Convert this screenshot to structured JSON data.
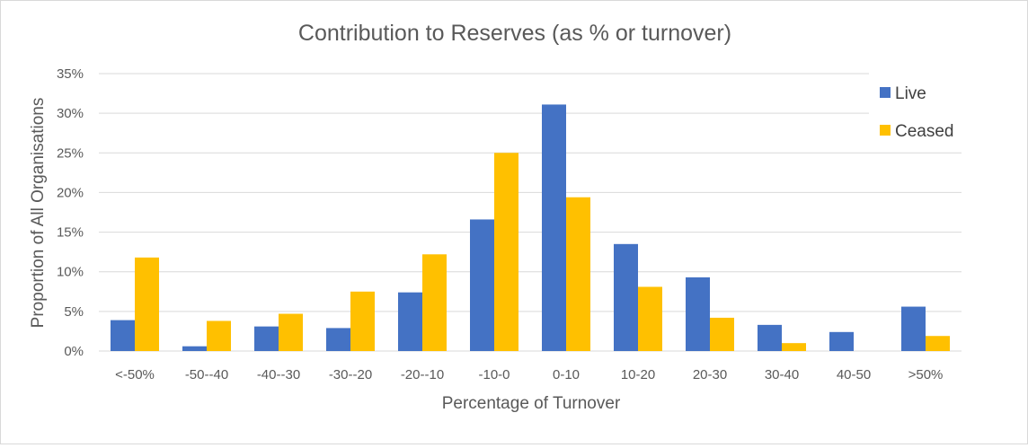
{
  "chart_data": {
    "type": "bar",
    "title": "Contribution to Reserves (as % or turnover)",
    "xlabel": "Percentage of Turnover",
    "ylabel": "Proportion of All Organisations",
    "categories": [
      "<-50%",
      "-50--40",
      "-40--30",
      "-30--20",
      "-20--10",
      "-10-0",
      "0-10",
      "10-20",
      "20-30",
      "30-40",
      "40-50",
      ">50%"
    ],
    "series": [
      {
        "name": "Live",
        "color": "#4472C4",
        "values": [
          3.9,
          0.6,
          3.1,
          2.9,
          7.4,
          16.6,
          31.1,
          13.5,
          9.3,
          3.3,
          2.4,
          5.6
        ]
      },
      {
        "name": "Ceased",
        "color": "#FFC000",
        "values": [
          11.8,
          3.8,
          4.7,
          7.5,
          12.2,
          25.0,
          19.4,
          8.1,
          4.2,
          1.0,
          0,
          1.9
        ]
      }
    ],
    "ylim": [
      0,
      35
    ],
    "yticks": [
      0,
      5,
      10,
      15,
      20,
      25,
      30,
      35
    ],
    "ytick_labels": [
      "0%",
      "5%",
      "10%",
      "15%",
      "20%",
      "25%",
      "30%",
      "35%"
    ],
    "grid": true,
    "legend_position": "top-right"
  }
}
